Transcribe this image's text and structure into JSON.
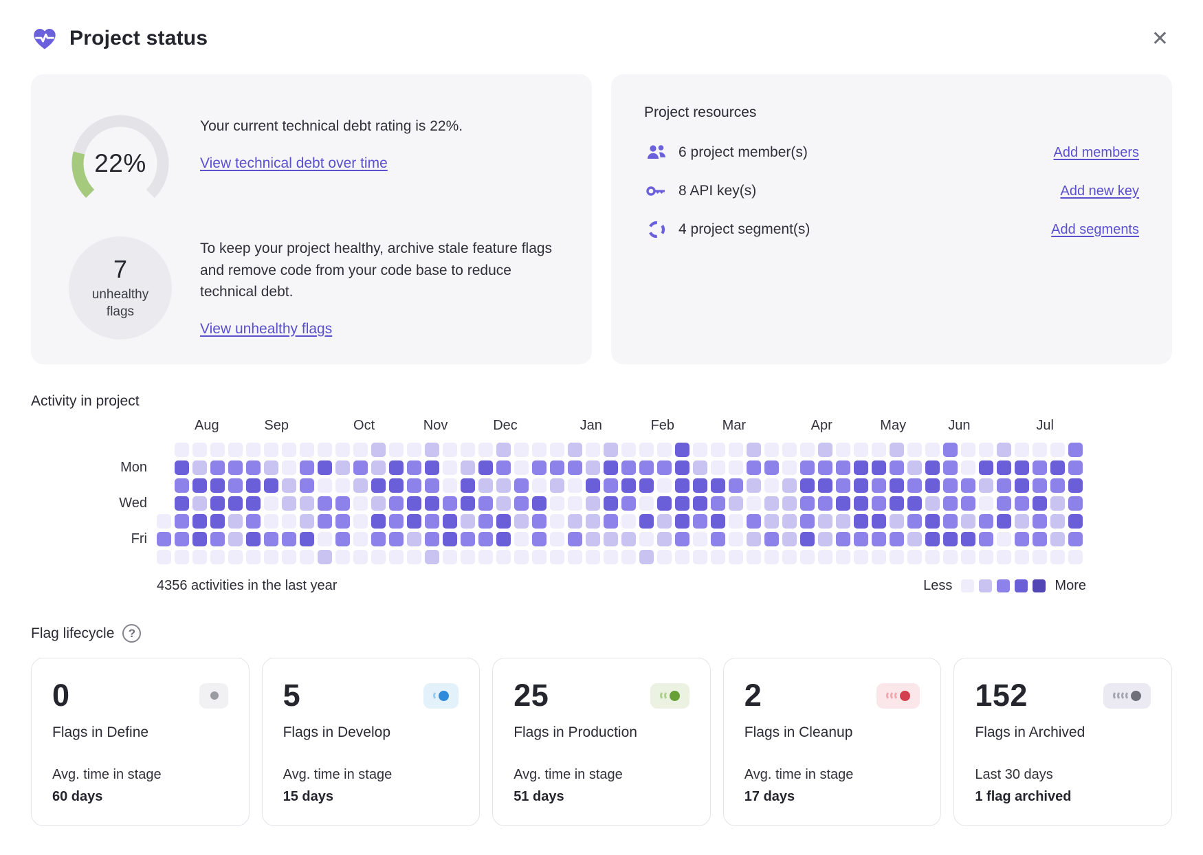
{
  "header": {
    "title": "Project status",
    "close_glyph": "✕",
    "brand_color": "#6c61dc"
  },
  "debt_card": {
    "gauge_percent": 22,
    "gauge_label": "22%",
    "gauge_color": "#a6ca7d",
    "gauge_track": "#e4e4e8",
    "line1": "Your current technical debt rating is 22%.",
    "link1": "View technical debt over time",
    "unhealthy_count": "7",
    "unhealthy_label": "unhealthy flags",
    "line2": "To keep your project healthy, archive stale feature flags and remove code from your code base to reduce technical debt.",
    "link2": "View unhealthy flags"
  },
  "resources_card": {
    "title": "Project resources",
    "rows": [
      {
        "icon": "members-icon",
        "text": "6 project member(s)",
        "link": "Add members"
      },
      {
        "icon": "api-key-icon",
        "text": "8 API key(s)",
        "link": "Add new key"
      },
      {
        "icon": "segments-icon",
        "text": "4 project segment(s)",
        "link": "Add segments"
      }
    ]
  },
  "activity": {
    "title": "Activity in project",
    "caption": "4356 activities in the last year",
    "legend_less": "Less",
    "legend_more": "More",
    "chart_data": {
      "type": "heatmap",
      "title": "Activity in project",
      "total_activities": 4356,
      "months": [
        {
          "label": "Aug",
          "col": 2.3
        },
        {
          "label": "Sep",
          "col": 6.2
        },
        {
          "label": "Oct",
          "col": 11.1
        },
        {
          "label": "Nov",
          "col": 15.1
        },
        {
          "label": "Dec",
          "col": 19.0
        },
        {
          "label": "Jan",
          "col": 23.8
        },
        {
          "label": "Feb",
          "col": 27.8
        },
        {
          "label": "Mar",
          "col": 31.8
        },
        {
          "label": "Apr",
          "col": 36.7
        },
        {
          "label": "May",
          "col": 40.7
        },
        {
          "label": "Jun",
          "col": 44.4
        },
        {
          "label": "Jul",
          "col": 49.2
        }
      ],
      "day_labels": [
        {
          "label": "Mon",
          "row": 1
        },
        {
          "label": "Wed",
          "row": 3
        },
        {
          "label": "Fri",
          "row": 5
        }
      ],
      "level_colors": [
        "#efedfb",
        "#c9c3f2",
        "#8d82ea",
        "#6a5ed9",
        "#5146b4"
      ],
      "rows": [
        [
          null,
          0,
          0,
          0,
          0,
          0,
          0,
          0,
          0,
          0,
          0,
          0,
          1,
          0,
          0,
          1,
          0,
          0,
          0,
          1,
          0,
          0,
          0,
          1,
          0,
          1,
          0,
          0,
          0,
          3,
          0,
          0,
          0,
          1,
          0,
          0,
          0,
          1,
          0,
          0,
          0,
          1,
          0,
          0,
          2,
          0,
          0,
          1,
          0,
          0,
          0,
          2
        ],
        [
          null,
          3,
          1,
          2,
          2,
          2,
          1,
          0,
          2,
          3,
          1,
          2,
          1,
          3,
          2,
          3,
          0,
          1,
          3,
          2,
          0,
          2,
          2,
          2,
          1,
          3,
          2,
          2,
          2,
          3,
          1,
          0,
          0,
          2,
          2,
          0,
          2,
          2,
          2,
          3,
          3,
          2,
          1,
          3,
          2,
          0,
          3,
          3,
          3,
          2,
          3,
          2
        ],
        [
          null,
          2,
          3,
          3,
          2,
          3,
          3,
          1,
          2,
          0,
          0,
          1,
          3,
          3,
          2,
          2,
          0,
          3,
          1,
          1,
          2,
          0,
          1,
          0,
          3,
          2,
          3,
          3,
          0,
          3,
          3,
          3,
          2,
          1,
          0,
          1,
          3,
          3,
          2,
          3,
          2,
          3,
          2,
          3,
          2,
          2,
          1,
          2,
          3,
          2,
          2,
          3
        ],
        [
          null,
          3,
          1,
          3,
          3,
          3,
          0,
          1,
          1,
          2,
          2,
          0,
          1,
          2,
          3,
          3,
          2,
          3,
          2,
          1,
          2,
          3,
          0,
          0,
          1,
          3,
          2,
          0,
          3,
          3,
          3,
          2,
          1,
          0,
          1,
          1,
          2,
          2,
          3,
          3,
          2,
          3,
          3,
          1,
          2,
          2,
          0,
          2,
          2,
          3,
          1,
          2
        ],
        [
          0,
          2,
          3,
          3,
          1,
          2,
          0,
          0,
          1,
          2,
          2,
          0,
          3,
          2,
          3,
          2,
          3,
          1,
          2,
          3,
          1,
          2,
          0,
          1,
          1,
          2,
          0,
          3,
          1,
          3,
          2,
          3,
          0,
          2,
          1,
          1,
          2,
          1,
          1,
          3,
          3,
          1,
          2,
          3,
          2,
          1,
          2,
          3,
          1,
          2,
          1,
          3
        ],
        [
          2,
          2,
          3,
          2,
          1,
          3,
          2,
          2,
          3,
          0,
          2,
          0,
          2,
          2,
          1,
          2,
          3,
          2,
          2,
          3,
          0,
          2,
          0,
          2,
          1,
          1,
          1,
          0,
          1,
          2,
          0,
          2,
          0,
          1,
          2,
          1,
          3,
          1,
          2,
          2,
          2,
          2,
          1,
          3,
          3,
          3,
          2,
          0,
          2,
          2,
          1,
          2
        ],
        [
          0,
          0,
          0,
          0,
          0,
          0,
          0,
          0,
          0,
          1,
          0,
          0,
          0,
          0,
          0,
          1,
          0,
          0,
          0,
          0,
          0,
          0,
          0,
          0,
          0,
          0,
          0,
          1,
          0,
          0,
          0,
          0,
          0,
          0,
          0,
          0,
          0,
          0,
          0,
          0,
          0,
          0,
          0,
          0,
          0,
          0,
          0,
          0,
          0,
          0,
          0,
          0
        ]
      ]
    }
  },
  "lifecycle": {
    "title": "Flag lifecycle",
    "help_glyph": "?",
    "cards": [
      {
        "count": "0",
        "label": "Flags in Define",
        "sub": "Avg. time in stage",
        "value": "60 days",
        "badge": {
          "bg": "#f1f1f4",
          "arcs": 0,
          "arc_color": "#b9b9c0",
          "dot_color": "#9b9ba3"
        }
      },
      {
        "count": "5",
        "label": "Flags in Develop",
        "sub": "Avg. time in stage",
        "value": "15 days",
        "badge": {
          "bg": "#e3f1fb",
          "arcs": 1,
          "arc_color": "#9ccbf0",
          "dot_color": "#2e8bd9"
        }
      },
      {
        "count": "25",
        "label": "Flags in Production",
        "sub": "Avg. time in stage",
        "value": "51 days",
        "badge": {
          "bg": "#ebf2e2",
          "arcs": 2,
          "arc_color": "#afcf8f",
          "dot_color": "#67a036"
        }
      },
      {
        "count": "2",
        "label": "Flags in Cleanup",
        "sub": "Avg. time in stage",
        "value": "17 days",
        "badge": {
          "bg": "#fbe6e9",
          "arcs": 3,
          "arc_color": "#f0a9b0",
          "dot_color": "#d43f4f"
        }
      },
      {
        "count": "152",
        "label": "Flags in Archived",
        "sub": "Last 30 days",
        "value": "1 flag archived",
        "badge": {
          "bg": "#ebeaf3",
          "arcs": 4,
          "arc_color": "#a6a6b0",
          "dot_color": "#6f6f79"
        }
      }
    ]
  }
}
